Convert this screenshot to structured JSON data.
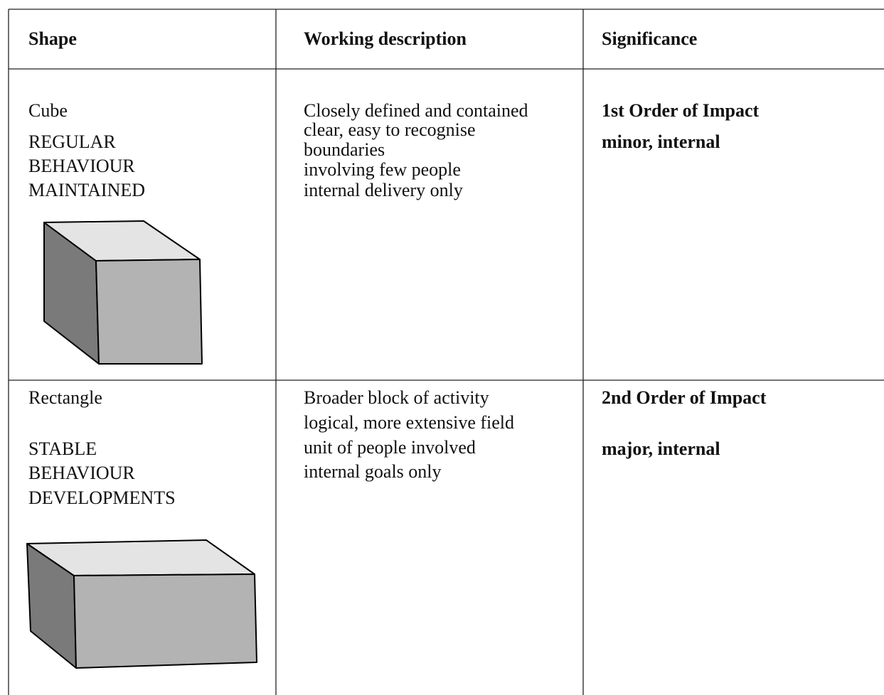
{
  "table": {
    "header": [
      "Shape",
      "Working description",
      "Significance"
    ],
    "rows": [
      {
        "shape": "Cube",
        "shape_caption": [
          "REGULAR",
          "BEHAVIOUR",
          "MAINTAINED"
        ],
        "description": [
          "Closely defined and contained",
          "clear, easy to recognise",
          "boundaries",
          "involving few people",
          "internal delivery only"
        ],
        "significance": [
          "1st Order of Impact",
          "minor, internal"
        ]
      },
      {
        "shape": "Rectangle",
        "shape_caption": [
          "STABLE",
          "BEHAVIOUR",
          "DEVELOPMENTS"
        ],
        "description": [
          "Broader block of activity",
          "logical, more extensive field",
          "unit of people involved",
          "internal goals only"
        ],
        "significance": [
          "2nd Order of Impact",
          "major, internal"
        ]
      }
    ]
  }
}
